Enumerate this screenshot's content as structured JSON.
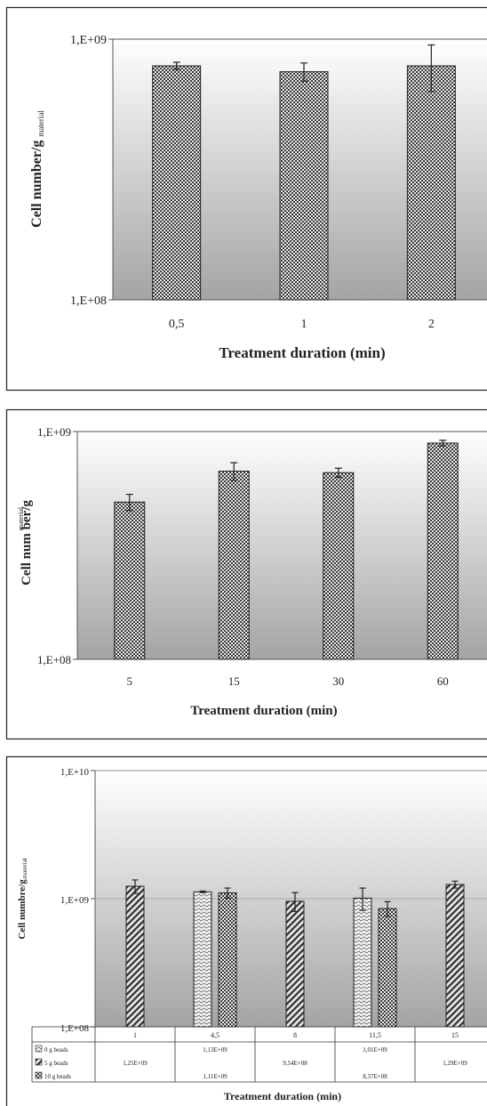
{
  "chart_data": [
    {
      "type": "bar",
      "title": "",
      "xlabel": "Treatment duration (min)",
      "ylabel": "Cell number/g",
      "ylabel_sub": "material",
      "yscale": "log",
      "ylim": [
        100000000,
        1000000000
      ],
      "yticks": [
        "1,E+08",
        "1,E+09"
      ],
      "grid": false,
      "categories": [
        "0,5",
        "1",
        "2"
      ],
      "series": [
        {
          "values": [
            790000000,
            750000000,
            790000000
          ],
          "err": [
            25000000,
            60000000,
            160000000
          ],
          "pattern": "checker"
        }
      ]
    },
    {
      "type": "bar",
      "title": "",
      "xlabel": "Treatment duration (min)",
      "ylabel": "Cell num ber/g",
      "ylabel_sub": "material",
      "yscale": "log",
      "ylim": [
        100000000,
        1000000000
      ],
      "yticks": [
        "1,E+08",
        "1,E+09"
      ],
      "grid": false,
      "categories": [
        "5",
        "15",
        "30",
        "60"
      ],
      "series": [
        {
          "values": [
            490000000,
            670000000,
            660000000,
            890000000
          ],
          "err": [
            40000000,
            60000000,
            30000000,
            25000000
          ],
          "pattern": "checker"
        }
      ]
    },
    {
      "type": "bar",
      "title": "",
      "xlabel": "Treatment duration (min)",
      "ylabel": "Cell numbre/g",
      "ylabel_sub": "material",
      "yscale": "log",
      "ylim": [
        100000000,
        10000000000
      ],
      "yticks": [
        "1,E+08",
        "1,E+09",
        "1,E+10"
      ],
      "grid": true,
      "categories": [
        "1",
        "4,5",
        "8",
        "11,5",
        "15"
      ],
      "series": [
        {
          "name": "0 g beads",
          "pattern": "wave",
          "values": [
            null,
            1130000000,
            null,
            1010000000,
            null
          ],
          "labels": [
            "",
            "1,13E+09",
            "",
            "1,01E+09",
            ""
          ],
          "err": [
            0,
            15000000,
            0,
            200000000,
            0
          ]
        },
        {
          "name": "5 g beads",
          "pattern": "diag",
          "values": [
            1250000000,
            null,
            954000000,
            null,
            1290000000
          ],
          "labels": [
            "1,25E+09",
            "",
            "9,54E+08",
            "",
            "1,29E+09"
          ],
          "err": [
            150000000,
            0,
            160000000,
            0,
            80000000
          ]
        },
        {
          "name": "10 g beads",
          "pattern": "checker",
          "values": [
            null,
            1110000000,
            null,
            837000000,
            null
          ],
          "labels": [
            "",
            "1,11E+09",
            "",
            "8,37E+08",
            ""
          ],
          "err": [
            0,
            100000000,
            0,
            110000000,
            0
          ]
        }
      ]
    }
  ]
}
